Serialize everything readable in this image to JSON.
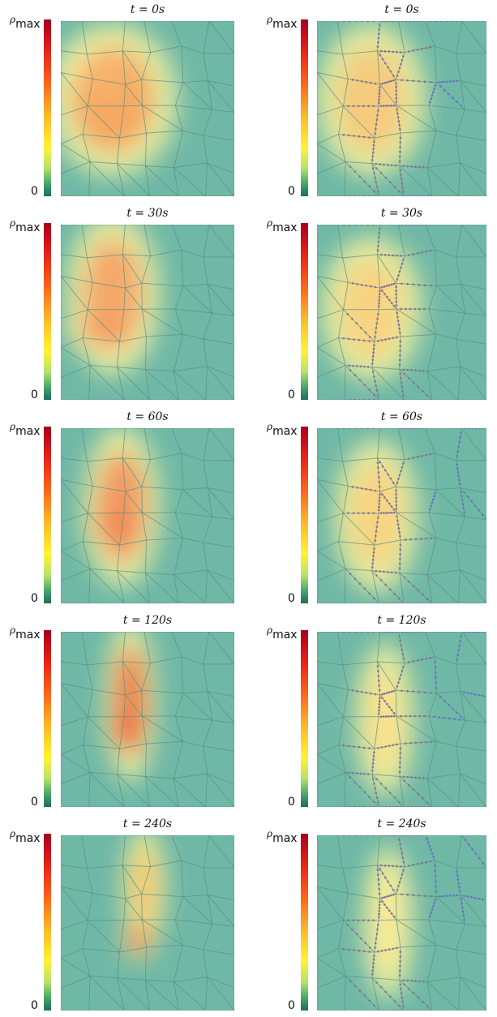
{
  "colorbar": {
    "label_main": "ρ",
    "label_sub": "max",
    "zero": "0"
  },
  "panels": [
    {
      "row": 0,
      "col": 0,
      "title": "t = 0s"
    },
    {
      "row": 0,
      "col": 1,
      "title": "t = 0s"
    },
    {
      "row": 1,
      "col": 0,
      "title": "t = 30s"
    },
    {
      "row": 1,
      "col": 1,
      "title": "t = 30s"
    },
    {
      "row": 2,
      "col": 0,
      "title": "t = 60s"
    },
    {
      "row": 2,
      "col": 1,
      "title": "t = 60s"
    },
    {
      "row": 3,
      "col": 0,
      "title": "t = 120s"
    },
    {
      "row": 3,
      "col": 1,
      "title": "t = 120s"
    },
    {
      "row": 4,
      "col": 0,
      "title": "t = 240s"
    },
    {
      "row": 4,
      "col": 1,
      "title": "t = 240s"
    }
  ],
  "colors": {
    "background": "#6fb8a6",
    "road": "#5c8f85",
    "vehicle": "#6a6fd0",
    "queue": "#8a6f9a"
  }
}
